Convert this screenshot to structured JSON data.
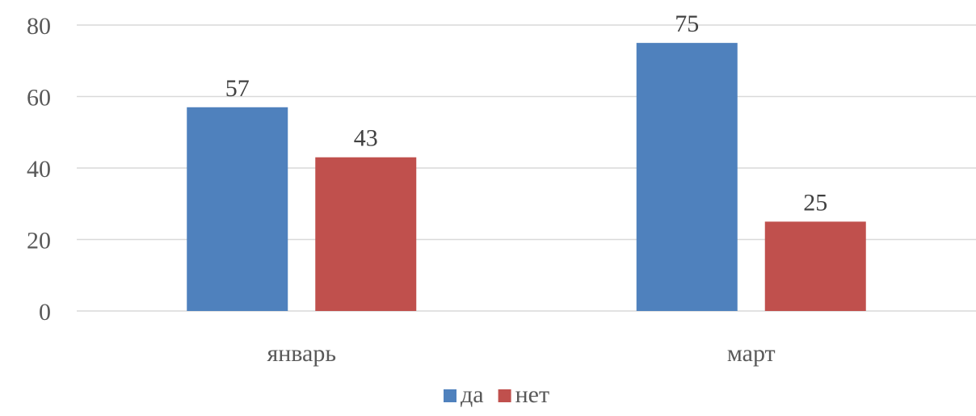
{
  "chart_data": {
    "type": "bar",
    "categories": [
      "январь",
      "март"
    ],
    "series": [
      {
        "name": "да",
        "values": [
          57,
          75
        ],
        "color": "#4F81BD"
      },
      {
        "name": "нет",
        "values": [
          43,
          25
        ],
        "color": "#C0504D"
      }
    ],
    "ylim": [
      0,
      80
    ],
    "yticks": [
      0,
      20,
      40,
      60,
      80
    ],
    "grid": true,
    "legend_position": "bottom",
    "data_labels": true
  }
}
